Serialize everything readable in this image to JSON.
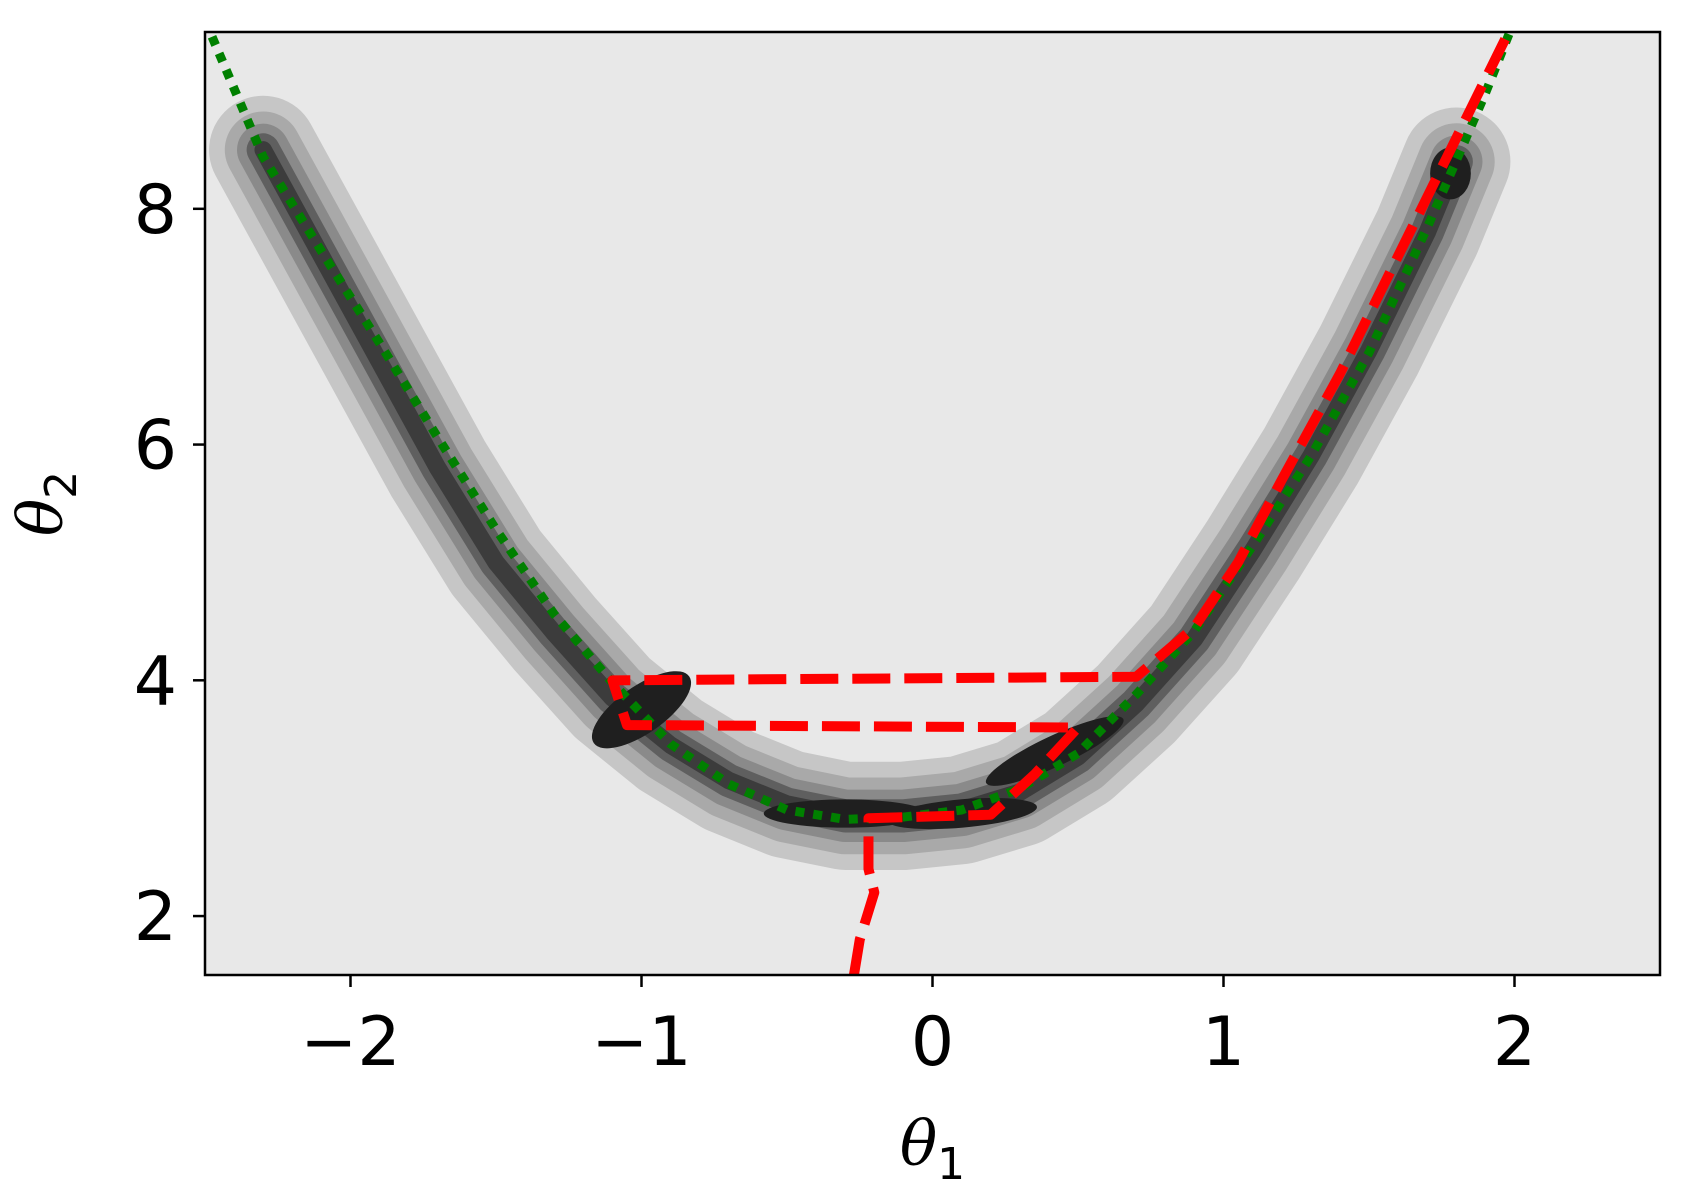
{
  "chart_data": {
    "type": "line",
    "title": "",
    "xlabel": {
      "symbol": "θ",
      "subscript": "1"
    },
    "ylabel": {
      "symbol": "θ",
      "subscript": "2"
    },
    "xlim": [
      -2.5,
      2.5
    ],
    "ylim": [
      1.5,
      9.5
    ],
    "xticks": [
      -2,
      -1,
      0,
      1,
      2
    ],
    "xtick_labels": [
      "−2",
      "−1",
      "0",
      "1",
      "2"
    ],
    "yticks": [
      2,
      4,
      6,
      8
    ],
    "ytick_labels": [
      "2",
      "4",
      "6",
      "8"
    ],
    "grid": false,
    "legend": "none",
    "background": "#e8e8e8",
    "density_contours": {
      "levels": [
        {
          "color": "#c6c6c6",
          "halfwidth": 0.62
        },
        {
          "color": "#a9a9a9",
          "halfwidth": 0.44
        },
        {
          "color": "#8a8a8a",
          "halfwidth": 0.3
        },
        {
          "color": "#5f5f5f",
          "halfwidth": 0.19
        },
        {
          "color": "#3c3c3c",
          "halfwidth": 0.1
        }
      ],
      "ridge": [
        {
          "x": -2.3,
          "y": 8.5
        },
        {
          "x": -2.1,
          "y": 7.6
        },
        {
          "x": -1.9,
          "y": 6.7
        },
        {
          "x": -1.7,
          "y": 5.8
        },
        {
          "x": -1.5,
          "y": 5.0
        },
        {
          "x": -1.3,
          "y": 4.4
        },
        {
          "x": -1.1,
          "y": 3.85
        },
        {
          "x": -0.9,
          "y": 3.45
        },
        {
          "x": -0.7,
          "y": 3.15
        },
        {
          "x": -0.5,
          "y": 2.95
        },
        {
          "x": -0.3,
          "y": 2.85
        },
        {
          "x": -0.1,
          "y": 2.85
        },
        {
          "x": 0.1,
          "y": 2.9
        },
        {
          "x": 0.3,
          "y": 3.05
        },
        {
          "x": 0.5,
          "y": 3.35
        },
        {
          "x": 0.7,
          "y": 3.8
        },
        {
          "x": 0.9,
          "y": 4.35
        },
        {
          "x": 1.1,
          "y": 5.1
        },
        {
          "x": 1.3,
          "y": 5.9
        },
        {
          "x": 1.5,
          "y": 6.8
        },
        {
          "x": 1.7,
          "y": 7.8
        },
        {
          "x": 1.8,
          "y": 8.4
        }
      ],
      "blobs": [
        {
          "cx": -1.0,
          "cy": 3.75,
          "rx": 0.2,
          "ry": 0.2,
          "angle": -35
        },
        {
          "cx": -0.3,
          "cy": 2.87,
          "rx": 0.28,
          "ry": 0.12,
          "angle": 0
        },
        {
          "cx": 0.1,
          "cy": 2.87,
          "rx": 0.26,
          "ry": 0.12,
          "angle": -5
        },
        {
          "cx": 0.42,
          "cy": 3.4,
          "rx": 0.26,
          "ry": 0.13,
          "angle": -25
        },
        {
          "cx": 1.78,
          "cy": 8.3,
          "rx": 0.07,
          "ry": 0.22,
          "angle": 0
        }
      ]
    },
    "series": [
      {
        "style": "dotted",
        "color": "#008000",
        "x": [
          -2.5,
          -2.3,
          -2.1,
          -1.9,
          -1.7,
          -1.5,
          -1.3,
          -1.1,
          -0.9,
          -0.7,
          -0.5,
          -0.3,
          -0.1,
          0.1,
          0.3,
          0.5,
          0.7,
          0.9,
          1.1,
          1.3,
          1.5,
          1.7,
          1.9,
          2.0
        ],
        "y": [
          9.6,
          8.44,
          7.64,
          6.86,
          6.06,
          5.28,
          4.56,
          3.98,
          3.46,
          3.12,
          2.9,
          2.82,
          2.84,
          2.9,
          3.08,
          3.38,
          3.88,
          4.42,
          5.14,
          5.9,
          6.78,
          7.84,
          8.98,
          9.6
        ]
      },
      {
        "style": "dashed",
        "color": "#ff0000",
        "x": [
          -0.27,
          -0.25,
          -0.2,
          -0.22,
          -0.22,
          -0.22,
          0.2,
          0.35,
          0.5,
          0.48,
          -1.05,
          -1.1,
          0.7,
          0.9,
          1.05,
          1.2,
          1.4,
          1.6,
          1.8,
          1.98
        ],
        "y": [
          1.5,
          1.8,
          2.2,
          2.4,
          2.4,
          2.83,
          2.86,
          3.2,
          3.6,
          3.6,
          3.62,
          4.0,
          4.03,
          4.45,
          5.0,
          5.7,
          6.6,
          7.6,
          8.6,
          9.5
        ]
      }
    ]
  }
}
